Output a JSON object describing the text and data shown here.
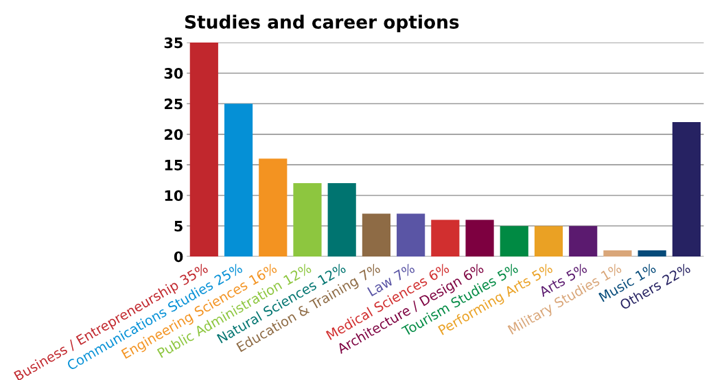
{
  "chart_data": {
    "type": "bar",
    "title": "Studies and career options",
    "categories": [
      "Business / Entrepreneurship 35%",
      "Communications Studies 25%",
      "Engineering Sciences 16%",
      "Public Administration 12%",
      "Natural Sciences 12%",
      "Education & Training 7%",
      "Law 7%",
      "Medical Sciences 6%",
      "Architecture / Design 6%",
      "Tourism Studies 5%",
      "Performing Arts 5%",
      "Arts 5%",
      "Military Studies 1%",
      "Music 1%",
      "Others 22%"
    ],
    "values": [
      35,
      25,
      16,
      12,
      12,
      7,
      7,
      6,
      6,
      5,
      5,
      5,
      1,
      1,
      22
    ],
    "colors": [
      "#c1272d",
      "#0590d6",
      "#f39321",
      "#8dc63f",
      "#007470",
      "#8e6b45",
      "#5a55a5",
      "#d12f2f",
      "#7d0040",
      "#008a43",
      "#eaa124",
      "#5b1a6f",
      "#d9a679",
      "#064b7a",
      "#262262"
    ],
    "ylim": [
      0,
      35
    ],
    "yticks": [
      0,
      5,
      10,
      15,
      20,
      25,
      30,
      35
    ],
    "grid": "y"
  }
}
